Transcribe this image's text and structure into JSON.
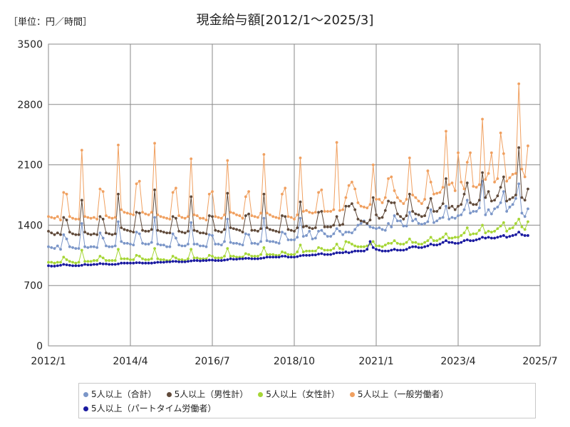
{
  "header": {
    "unit_label": "［単位：円／時間］",
    "title": "現金給与額[2012/1～2025/3]"
  },
  "chart_data": {
    "type": "line",
    "title": "現金給与額[2012/1～2025/3]",
    "unit": "［単位：円／時間］",
    "xlabel": "",
    "ylabel": "",
    "ylim": [
      0,
      3500
    ],
    "yticks": [
      "0",
      "700",
      "1400",
      "2100",
      "2800",
      "3500"
    ],
    "xticks": [
      "2012/1",
      "2014/4",
      "2016/7",
      "2018/10",
      "2021/1",
      "2023/4",
      "2025/7"
    ],
    "x_range": [
      "2012/1",
      "2025/7"
    ],
    "x_start": "2012/1",
    "x_end": "2025/3",
    "grid": true,
    "legend_position": "bottom",
    "series": [
      {
        "name": "5人以上（合計）",
        "color": "#7b96c8",
        "values": [
          1150,
          1140,
          1130,
          1160,
          1120,
          1290,
          1240,
          1150,
          1140,
          1130,
          1130,
          1420,
          1150,
          1140,
          1150,
          1150,
          1140,
          1310,
          1250,
          1160,
          1150,
          1150,
          1160,
          1440,
          1210,
          1190,
          1190,
          1180,
          1170,
          1320,
          1300,
          1190,
          1180,
          1180,
          1200,
          1490,
          1180,
          1170,
          1170,
          1150,
          1150,
          1300,
          1250,
          1170,
          1160,
          1160,
          1180,
          1430,
          1180,
          1180,
          1160,
          1160,
          1150,
          1290,
          1280,
          1180,
          1180,
          1170,
          1210,
          1470,
          1200,
          1190,
          1190,
          1180,
          1170,
          1300,
          1290,
          1190,
          1190,
          1180,
          1210,
          1480,
          1220,
          1210,
          1210,
          1200,
          1190,
          1320,
          1300,
          1230,
          1230,
          1230,
          1260,
          1480,
          1270,
          1280,
          1330,
          1240,
          1250,
          1330,
          1340,
          1300,
          1270,
          1270,
          1300,
          1360,
          1330,
          1290,
          1320,
          1320,
          1310,
          1350,
          1400,
          1420,
          1450,
          1410,
          1380,
          1370,
          1360,
          1370,
          1350,
          1340,
          1420,
          1380,
          1510,
          1450,
          1450,
          1390,
          1390,
          1550,
          1450,
          1470,
          1420,
          1410,
          1420,
          1440,
          1580,
          1430,
          1450,
          1480,
          1490,
          1620,
          1470,
          1490,
          1480,
          1510,
          1520,
          1580,
          1690,
          1540,
          1560,
          1560,
          1600,
          1910,
          1520,
          1580,
          1530,
          1590,
          1610,
          1660,
          1790,
          1560,
          1610,
          1640,
          1710,
          1880,
          1540,
          1500,
          1590
        ]
      },
      {
        "name": "5人以上（男性計）",
        "color": "#604a3a",
        "values": [
          1330,
          1310,
          1290,
          1310,
          1290,
          1490,
          1460,
          1320,
          1300,
          1290,
          1290,
          1690,
          1320,
          1300,
          1290,
          1300,
          1290,
          1500,
          1470,
          1310,
          1300,
          1290,
          1300,
          1760,
          1370,
          1350,
          1340,
          1330,
          1320,
          1550,
          1540,
          1340,
          1330,
          1330,
          1350,
          1810,
          1340,
          1330,
          1320,
          1310,
          1310,
          1500,
          1480,
          1330,
          1320,
          1310,
          1330,
          1730,
          1340,
          1330,
          1310,
          1310,
          1300,
          1510,
          1500,
          1340,
          1330,
          1320,
          1350,
          1770,
          1370,
          1360,
          1350,
          1340,
          1320,
          1510,
          1530,
          1340,
          1340,
          1330,
          1360,
          1760,
          1370,
          1350,
          1340,
          1330,
          1320,
          1510,
          1500,
          1350,
          1340,
          1330,
          1370,
          1670,
          1380,
          1390,
          1370,
          1360,
          1370,
          1550,
          1560,
          1380,
          1380,
          1380,
          1400,
          1500,
          1400,
          1410,
          1620,
          1620,
          1650,
          1580,
          1470,
          1450,
          1440,
          1420,
          1460,
          1720,
          1520,
          1480,
          1490,
          1570,
          1680,
          1660,
          1660,
          1530,
          1500,
          1470,
          1510,
          1760,
          1560,
          1530,
          1520,
          1500,
          1510,
          1600,
          1710,
          1560,
          1560,
          1600,
          1650,
          1940,
          1600,
          1620,
          1580,
          1620,
          1640,
          1760,
          1890,
          1660,
          1640,
          1640,
          1690,
          2010,
          1720,
          1790,
          1680,
          1690,
          1740,
          1840,
          1960,
          1680,
          1700,
          1720,
          1750,
          2300,
          1720,
          1690,
          1820
        ]
      },
      {
        "name": "5人以上（女性計）",
        "color": "#a6d636",
        "values": [
          970,
          970,
          960,
          970,
          970,
          1030,
          1000,
          980,
          970,
          960,
          970,
          1110,
          980,
          980,
          980,
          990,
          990,
          1040,
          1020,
          990,
          990,
          990,
          990,
          1120,
          1010,
          1010,
          1010,
          1000,
          1000,
          1050,
          1040,
          1010,
          1000,
          1000,
          1010,
          1130,
          1010,
          1000,
          1000,
          990,
          990,
          1040,
          1020,
          1000,
          1000,
          990,
          1010,
          1120,
          1020,
          1020,
          1010,
          1010,
          1010,
          1050,
          1040,
          1020,
          1020,
          1020,
          1040,
          1130,
          1040,
          1040,
          1030,
          1030,
          1030,
          1070,
          1060,
          1040,
          1040,
          1040,
          1060,
          1140,
          1060,
          1060,
          1060,
          1050,
          1050,
          1090,
          1080,
          1060,
          1060,
          1060,
          1090,
          1170,
          1090,
          1100,
          1100,
          1100,
          1100,
          1140,
          1130,
          1110,
          1110,
          1110,
          1130,
          1180,
          1130,
          1120,
          1210,
          1200,
          1180,
          1160,
          1150,
          1150,
          1150,
          1160,
          1180,
          1210,
          1160,
          1160,
          1150,
          1170,
          1190,
          1190,
          1220,
          1190,
          1180,
          1180,
          1200,
          1240,
          1200,
          1200,
          1180,
          1180,
          1200,
          1220,
          1260,
          1220,
          1220,
          1240,
          1260,
          1300,
          1250,
          1250,
          1260,
          1260,
          1280,
          1310,
          1370,
          1290,
          1300,
          1300,
          1340,
          1400,
          1310,
          1330,
          1320,
          1330,
          1360,
          1390,
          1430,
          1330,
          1360,
          1370,
          1420,
          1470,
          1380,
          1350,
          1440
        ]
      },
      {
        "name": "5人以上（一般労働者）",
        "color": "#f0a060",
        "values": [
          1500,
          1490,
          1480,
          1500,
          1460,
          1780,
          1760,
          1500,
          1480,
          1470,
          1470,
          2270,
          1500,
          1490,
          1480,
          1490,
          1470,
          1820,
          1790,
          1510,
          1490,
          1480,
          1490,
          2330,
          1580,
          1550,
          1540,
          1530,
          1520,
          1880,
          1910,
          1550,
          1530,
          1520,
          1550,
          2350,
          1520,
          1500,
          1490,
          1480,
          1470,
          1780,
          1830,
          1510,
          1490,
          1480,
          1500,
          2170,
          1520,
          1510,
          1480,
          1480,
          1460,
          1760,
          1790,
          1500,
          1490,
          1480,
          1520,
          2150,
          1550,
          1540,
          1520,
          1510,
          1480,
          1730,
          1790,
          1510,
          1500,
          1490,
          1540,
          2220,
          1540,
          1520,
          1500,
          1490,
          1480,
          1760,
          1830,
          1500,
          1490,
          1470,
          1520,
          2180,
          1560,
          1570,
          1550,
          1540,
          1550,
          1780,
          1810,
          1560,
          1560,
          1560,
          1580,
          2360,
          1570,
          1580,
          1720,
          1860,
          1900,
          1820,
          1660,
          1620,
          1610,
          1600,
          1640,
          2100,
          1700,
          1700,
          1660,
          1720,
          1940,
          1960,
          1800,
          1720,
          1680,
          1650,
          1700,
          2180,
          1750,
          1720,
          1680,
          1650,
          1700,
          2030,
          1900,
          1760,
          1770,
          1780,
          1840,
          2490,
          1870,
          1890,
          1800,
          2240,
          1900,
          1820,
          2130,
          2240,
          1850,
          1840,
          1870,
          2630,
          1930,
          2000,
          2240,
          1900,
          1940,
          2470,
          2230,
          1910,
          1950,
          1990,
          2000,
          3040,
          2050,
          1960,
          2320
        ]
      },
      {
        "name": "5人以上（パートタイム労働者）",
        "color": "#1a1aa0",
        "values": [
          930,
          925,
          925,
          930,
          935,
          945,
          940,
          935,
          930,
          930,
          930,
          935,
          945,
          940,
          940,
          945,
          945,
          955,
          950,
          950,
          945,
          945,
          945,
          950,
          960,
          960,
          960,
          960,
          960,
          965,
          965,
          960,
          960,
          960,
          960,
          965,
          970,
          970,
          970,
          975,
          975,
          980,
          980,
          975,
          975,
          975,
          980,
          985,
          990,
          990,
          985,
          990,
          990,
          995,
          995,
          990,
          990,
          990,
          995,
          1000,
          1010,
          1005,
          1005,
          1010,
          1010,
          1015,
          1015,
          1010,
          1010,
          1010,
          1015,
          1020,
          1030,
          1030,
          1030,
          1030,
          1030,
          1040,
          1040,
          1030,
          1030,
          1030,
          1035,
          1045,
          1050,
          1050,
          1050,
          1055,
          1055,
          1065,
          1070,
          1060,
          1060,
          1060,
          1070,
          1080,
          1080,
          1080,
          1090,
          1080,
          1090,
          1100,
          1100,
          1100,
          1100,
          1120,
          1210,
          1140,
          1120,
          1110,
          1100,
          1100,
          1100,
          1110,
          1120,
          1110,
          1110,
          1110,
          1120,
          1140,
          1150,
          1150,
          1140,
          1140,
          1150,
          1160,
          1180,
          1170,
          1170,
          1180,
          1200,
          1220,
          1200,
          1200,
          1190,
          1190,
          1200,
          1220,
          1230,
          1220,
          1220,
          1230,
          1240,
          1260,
          1250,
          1260,
          1250,
          1250,
          1260,
          1270,
          1280,
          1260,
          1270,
          1280,
          1290,
          1320,
          1290,
          1280,
          1280
        ]
      }
    ]
  }
}
